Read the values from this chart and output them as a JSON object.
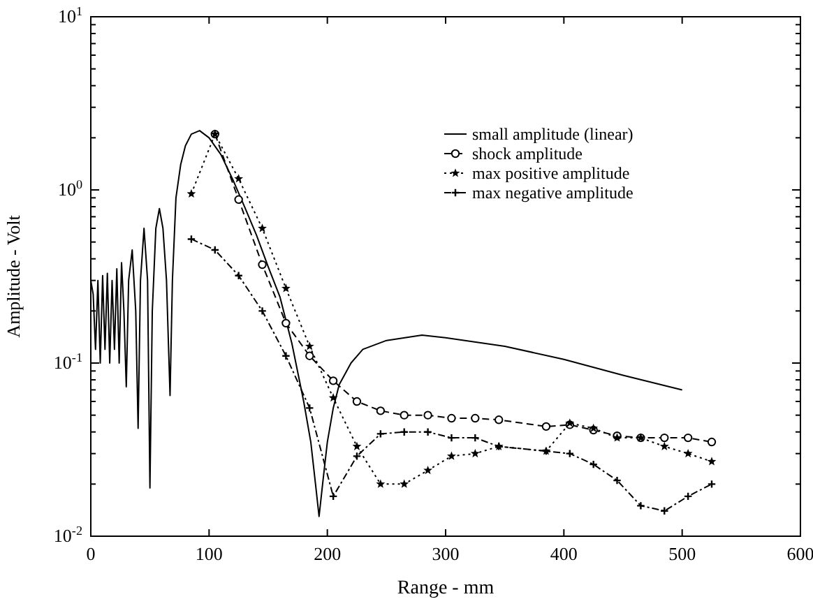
{
  "chart_data": {
    "type": "line",
    "xlabel": "Range - mm",
    "ylabel": "Amplitude - Volt",
    "log": "y",
    "xlim": [
      0,
      600
    ],
    "xticks": [
      0,
      100,
      200,
      300,
      400,
      500,
      600
    ],
    "ylim": [
      0.01,
      10
    ],
    "yticks": [
      {
        "value": 0.01,
        "label": "10$^{-2}$"
      },
      {
        "value": 0.02,
        "label": null
      },
      {
        "value": 0.03,
        "label": null
      },
      {
        "value": 0.04,
        "label": null
      },
      {
        "value": 0.05,
        "label": null
      },
      {
        "value": 0.06,
        "label": null
      },
      {
        "value": 0.07,
        "label": null
      },
      {
        "value": 0.08,
        "label": null
      },
      {
        "value": 0.09,
        "label": null
      },
      {
        "value": 0.1,
        "label": "10$^{-1}$"
      },
      {
        "value": 0.2,
        "label": null
      },
      {
        "value": 0.3,
        "label": null
      },
      {
        "value": 0.4,
        "label": null
      },
      {
        "value": 0.5,
        "label": null
      },
      {
        "value": 0.6,
        "label": null
      },
      {
        "value": 0.7,
        "label": null
      },
      {
        "value": 0.8,
        "label": null
      },
      {
        "value": 0.9,
        "label": null
      },
      {
        "value": 1,
        "label": "10$^{0}$"
      },
      {
        "value": 2,
        "label": null
      },
      {
        "value": 3,
        "label": null
      },
      {
        "value": 4,
        "label": null
      },
      {
        "value": 5,
        "label": null
      },
      {
        "value": 6,
        "label": null
      },
      {
        "value": 7,
        "label": null
      },
      {
        "value": 8,
        "label": null
      },
      {
        "value": 9,
        "label": null
      },
      {
        "value": 10,
        "label": "10$^{1}$"
      }
    ],
    "grid": false,
    "legend": "top right",
    "series": [
      {
        "name": "small amplitude (linear)",
        "color": "#000000",
        "line_style": "solid",
        "marker": "none",
        "x": [
          0,
          2,
          4,
          6,
          8,
          10,
          12,
          14,
          16,
          18,
          20,
          22,
          24,
          26,
          28,
          30,
          32,
          35,
          38,
          40,
          42,
          45,
          48,
          50,
          52,
          55,
          58,
          61,
          64,
          67,
          69,
          72,
          76,
          80,
          85,
          92,
          100,
          110,
          120,
          130,
          140,
          150,
          160,
          170,
          180,
          186,
          190,
          193,
          196,
          200,
          205,
          210,
          220,
          230,
          250,
          280,
          300,
          350,
          400,
          450,
          500
        ],
        "values": [
          0.3,
          0.25,
          0.12,
          0.3,
          0.1,
          0.32,
          0.12,
          0.33,
          0.1,
          0.3,
          0.12,
          0.35,
          0.1,
          0.38,
          0.2,
          0.073,
          0.3,
          0.45,
          0.2,
          0.042,
          0.3,
          0.6,
          0.3,
          0.019,
          0.2,
          0.6,
          0.78,
          0.6,
          0.3,
          0.065,
          0.3,
          0.9,
          1.4,
          1.8,
          2.1,
          2.2,
          2.0,
          1.6,
          1.15,
          0.8,
          0.55,
          0.36,
          0.24,
          0.13,
          0.06,
          0.035,
          0.02,
          0.013,
          0.02,
          0.035,
          0.055,
          0.075,
          0.1,
          0.12,
          0.135,
          0.145,
          0.14,
          0.125,
          0.105,
          0.085,
          0.07
        ]
      },
      {
        "name": "shock amplitude",
        "color": "#000000",
        "line_style": "dashed",
        "marker": "circle",
        "x": [
          105,
          125,
          145,
          165,
          185,
          205,
          225,
          245,
          265,
          285,
          305,
          325,
          345,
          385,
          405,
          425,
          445,
          465,
          485,
          505,
          525
        ],
        "values": [
          2.1,
          0.88,
          0.37,
          0.17,
          0.11,
          0.079,
          0.06,
          0.053,
          0.05,
          0.05,
          0.048,
          0.048,
          0.047,
          0.043,
          0.044,
          0.041,
          0.038,
          0.037,
          0.037,
          0.037,
          0.035
        ]
      },
      {
        "name": "max positive amplitude",
        "color": "#000000",
        "line_style": "dotted",
        "marker": "star",
        "x": [
          85,
          105,
          125,
          145,
          165,
          185,
          205,
          225,
          245,
          265,
          285,
          305,
          325,
          345,
          385,
          405,
          425,
          445,
          465,
          485,
          505,
          525
        ],
        "values": [
          0.95,
          2.1,
          1.16,
          0.6,
          0.27,
          0.125,
          0.063,
          0.033,
          0.02,
          0.02,
          0.024,
          0.029,
          0.03,
          0.033,
          0.031,
          0.045,
          0.042,
          0.037,
          0.037,
          0.033,
          0.03,
          0.027
        ]
      },
      {
        "name": "max negative amplitude",
        "color": "#000000",
        "line_style": "dashdot",
        "marker": "cross",
        "x": [
          85,
          105,
          125,
          145,
          165,
          185,
          205,
          225,
          245,
          265,
          285,
          305,
          325,
          345,
          385,
          405,
          425,
          445,
          465,
          485,
          505,
          525
        ],
        "values": [
          0.52,
          0.45,
          0.32,
          0.2,
          0.11,
          0.055,
          0.017,
          0.029,
          0.039,
          0.04,
          0.04,
          0.037,
          0.037,
          0.033,
          0.031,
          0.03,
          0.026,
          0.021,
          0.015,
          0.014,
          0.017,
          0.02
        ]
      }
    ]
  }
}
